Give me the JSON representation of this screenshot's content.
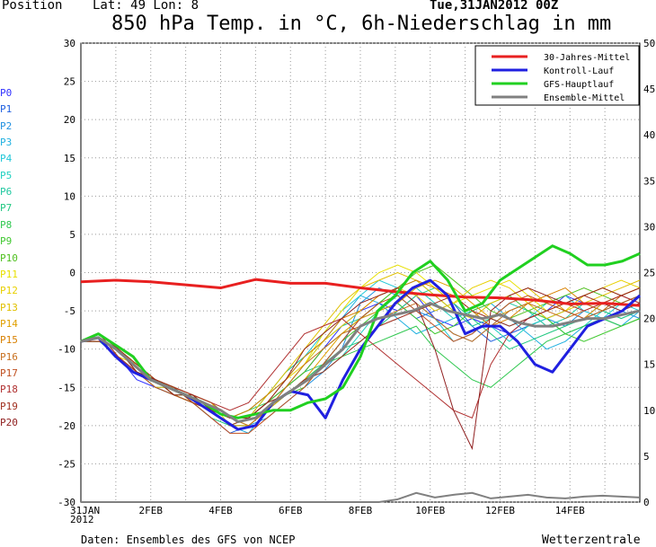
{
  "header": {
    "position_label": "Position",
    "latlon": "Lat: 49 Lon: 8",
    "datetime": "Tue,31JAN2012 00Z",
    "title": "850 hPa Temp. in °C, 6h-Niederschlag in mm"
  },
  "footer": {
    "source": "Daten: Ensembles des GFS von NCEP",
    "brand": "Wetterzentrale"
  },
  "members": [
    "P0",
    "P1",
    "P2",
    "P3",
    "P4",
    "P5",
    "P6",
    "P7",
    "P8",
    "P9",
    "P10",
    "P11",
    "P12",
    "P13",
    "P14",
    "P15",
    "P16",
    "P17",
    "P18",
    "P19",
    "P20"
  ],
  "member_colors": [
    "#3030ff",
    "#2060e0",
    "#2090e0",
    "#20b0e0",
    "#20c8d8",
    "#20d0c0",
    "#20c8a0",
    "#20c880",
    "#30c850",
    "#40c830",
    "#50c020",
    "#e8e000",
    "#e8d000",
    "#e0c000",
    "#e0a000",
    "#d88000",
    "#c87020",
    "#c05020",
    "#b03030",
    "#a03020",
    "#902020"
  ],
  "chart_data": {
    "type": "line",
    "title": "850 hPa Temp. in °C, 6h-Niederschlag in mm",
    "ylim_left": [
      -30,
      30
    ],
    "ylim_right": [
      0,
      50
    ],
    "y_ticks_left": [
      "30",
      "25",
      "20",
      "15",
      "10",
      "5",
      "0",
      "-5",
      "-10",
      "-15",
      "-20",
      "-25",
      "-30"
    ],
    "y_ticks_right": [
      "50",
      "45",
      "40",
      "35",
      "30",
      "25",
      "20",
      "15",
      "10",
      "5",
      "0"
    ],
    "x_ticks": [
      "31JAN\n2012",
      "2FEB",
      "4FEB",
      "6FEB",
      "8FEB",
      "10FEB",
      "12FEB",
      "14FEB"
    ],
    "x_range_days": 16,
    "grid": true,
    "legend": {
      "position": "top-right",
      "entries": [
        {
          "label": "30-Jahres-Mittel",
          "color": "#e82020"
        },
        {
          "label": "Kontroll-Lauf",
          "color": "#2020e0"
        },
        {
          "label": "GFS-Hauptlauf",
          "color": "#20d020"
        },
        {
          "label": "Ensemble-Mittel",
          "color": "#808080"
        }
      ]
    },
    "series": [
      {
        "name": "30-Jahres-Mittel",
        "color": "#e82020",
        "width": 3,
        "x": [
          0,
          1,
          2,
          3,
          4,
          5,
          6,
          7,
          8,
          9,
          10,
          11,
          12,
          13,
          14,
          15,
          16
        ],
        "y": [
          -1.2,
          -1.0,
          -1.2,
          -1.6,
          -2.0,
          -0.9,
          -1.4,
          -1.4,
          -2.0,
          -2.5,
          -2.9,
          -3.2,
          -3.3,
          -3.6,
          -4.1,
          -4.0,
          -4.3
        ]
      },
      {
        "name": "Kontroll-Lauf",
        "color": "#2020e0",
        "width": 3,
        "x": [
          0,
          0.5,
          1,
          1.5,
          2,
          2.5,
          3,
          3.5,
          4,
          4.5,
          5,
          5.5,
          6,
          6.5,
          7,
          7.5,
          8,
          8.5,
          9,
          9.5,
          10,
          10.5,
          11,
          11.5,
          12,
          12.5,
          13,
          13.5,
          14,
          14.5,
          15,
          15.5,
          16
        ],
        "y": [
          -9,
          -8.5,
          -11,
          -13,
          -14,
          -15,
          -16,
          -17.5,
          -19,
          -20.5,
          -20,
          -17,
          -15.5,
          -16,
          -19,
          -14,
          -10,
          -7,
          -4,
          -2,
          -1,
          -3,
          -8,
          -7,
          -7,
          -9,
          -12,
          -13,
          -10,
          -7,
          -6,
          -5,
          -3
        ]
      },
      {
        "name": "GFS-Hauptlauf",
        "color": "#20d020",
        "width": 3,
        "x": [
          0,
          0.5,
          1,
          1.5,
          2,
          2.5,
          3,
          3.5,
          4,
          4.5,
          5,
          5.5,
          6,
          6.5,
          7,
          7.5,
          8,
          8.5,
          9,
          9.5,
          10,
          10.5,
          11,
          11.5,
          12,
          12.5,
          13,
          13.5,
          14,
          14.5,
          15,
          15.5,
          16
        ],
        "y": [
          -9,
          -8,
          -9.5,
          -11,
          -14,
          -15,
          -16,
          -17,
          -18.5,
          -19,
          -18.5,
          -18,
          -18,
          -17,
          -16.5,
          -15,
          -11,
          -5,
          -3,
          0,
          1.5,
          -1,
          -5,
          -4,
          -1,
          0.5,
          2,
          3.5,
          2.5,
          1,
          1,
          1.5,
          2.5
        ]
      },
      {
        "name": "Ensemble-Mittel",
        "color": "#808080",
        "width": 3,
        "x": [
          0,
          0.5,
          1,
          1.5,
          2,
          2.5,
          3,
          3.5,
          4,
          4.5,
          5,
          5.5,
          6,
          6.5,
          7,
          7.5,
          8,
          8.5,
          9,
          9.5,
          10,
          10.5,
          11,
          11.5,
          12,
          12.5,
          13,
          13.5,
          14,
          14.5,
          15,
          15.5,
          16
        ],
        "y": [
          -9,
          -8.5,
          -10,
          -12,
          -14,
          -15,
          -16,
          -17,
          -18,
          -19.5,
          -19,
          -17,
          -15.5,
          -14,
          -12,
          -10,
          -7,
          -6,
          -5.5,
          -5,
          -4,
          -5,
          -5.5,
          -6,
          -5.5,
          -6.5,
          -7,
          -7,
          -6.5,
          -6,
          -6,
          -5.5,
          -5
        ]
      }
    ],
    "members_temp": [
      [
        -9,
        -9,
        -11,
        -14,
        -15,
        -16,
        -17,
        -18,
        -20,
        -19,
        -17,
        -15,
        -13,
        -10,
        -7,
        -5,
        -4,
        -5,
        -3,
        -6,
        -7,
        -6,
        -7,
        -8,
        -6,
        -5,
        -3,
        -4,
        -5,
        -3,
        -4
      ],
      [
        -9,
        -9,
        -10,
        -13,
        -14,
        -16,
        -17,
        -19,
        -21,
        -20,
        -18,
        -16,
        -14,
        -12,
        -9,
        -6,
        -5,
        -4,
        -6,
        -5,
        -4,
        -7,
        -9,
        -8,
        -7,
        -6,
        -5,
        -6,
        -4,
        -5,
        -4
      ],
      [
        -9,
        -8,
        -11,
        -13,
        -15,
        -15,
        -17,
        -18,
        -19,
        -20,
        -19,
        -17,
        -15,
        -13,
        -10,
        -4,
        -2,
        -3,
        -5,
        -6,
        -8,
        -9,
        -7,
        -5,
        -4,
        -6,
        -7,
        -5,
        -6,
        -5,
        -6
      ],
      [
        -9,
        -8,
        -10,
        -12,
        -14,
        -15,
        -16,
        -18,
        -20,
        -21,
        -18,
        -15,
        -12,
        -9,
        -6,
        -3,
        -4,
        -6,
        -8,
        -7,
        -6,
        -5,
        -4,
        -6,
        -8,
        -10,
        -9,
        -7,
        -6,
        -7,
        -5
      ],
      [
        -9,
        -9,
        -11,
        -13,
        -14,
        -16,
        -16,
        -17,
        -19,
        -19,
        -16,
        -14,
        -11,
        -8,
        -5,
        -3,
        -1,
        -2,
        -4,
        -6,
        -9,
        -8,
        -6,
        -7,
        -6,
        -4,
        -3,
        -5,
        -6,
        -4,
        -5
      ],
      [
        -9,
        -8,
        -10,
        -12,
        -14,
        -15,
        -17,
        -18,
        -20,
        -20,
        -18,
        -16,
        -14,
        -13,
        -11,
        -8,
        -5,
        -3,
        -2,
        -4,
        -6,
        -5,
        -7,
        -9,
        -7,
        -6,
        -8,
        -7,
        -5,
        -6,
        -5
      ],
      [
        -9,
        -8,
        -10,
        -13,
        -14,
        -15,
        -16,
        -17,
        -19,
        -18,
        -16,
        -13,
        -11,
        -9,
        -7,
        -6,
        -4,
        -2,
        -1,
        -3,
        -5,
        -7,
        -6,
        -4,
        -5,
        -7,
        -6,
        -4,
        -5,
        -4,
        -3
      ],
      [
        -9,
        -9,
        -11,
        -13,
        -15,
        -16,
        -17,
        -19,
        -20,
        -19,
        -17,
        -15,
        -13,
        -12,
        -10,
        -9,
        -7,
        -5,
        -3,
        -2,
        -4,
        -6,
        -8,
        -10,
        -9,
        -8,
        -7,
        -6,
        -5,
        -6,
        -5
      ],
      [
        -9,
        -8,
        -10,
        -12,
        -14,
        -15,
        -16,
        -18,
        -19,
        -18,
        -17,
        -16,
        -14,
        -12,
        -11,
        -10,
        -9,
        -8,
        -7,
        -10,
        -12,
        -14,
        -15,
        -13,
        -11,
        -9,
        -8,
        -7,
        -6,
        -7,
        -6
      ],
      [
        -9,
        -8,
        -11,
        -13,
        -14,
        -16,
        -17,
        -18,
        -20,
        -20,
        -18,
        -16,
        -15,
        -12,
        -9,
        -7,
        -5,
        -4,
        -6,
        -8,
        -7,
        -5,
        -4,
        -3,
        -5,
        -6,
        -8,
        -9,
        -8,
        -7,
        -6
      ],
      [
        -9,
        -9,
        -10,
        -12,
        -14,
        -15,
        -16,
        -17,
        -19,
        -19,
        -17,
        -15,
        -13,
        -10,
        -8,
        -6,
        -4,
        -2,
        0,
        1,
        -1,
        -3,
        -5,
        -6,
        -5,
        -4,
        -3,
        -2,
        -3,
        -4,
        -3
      ],
      [
        -9,
        -8,
        -10,
        -13,
        -14,
        -15,
        -17,
        -18,
        -19,
        -20,
        -18,
        -15,
        -12,
        -8,
        -5,
        -2,
        0,
        1,
        0,
        -2,
        -4,
        -3,
        -2,
        -1,
        -3,
        -5,
        -4,
        -3,
        -2,
        -3,
        -2
      ],
      [
        -9,
        -8,
        -11,
        -12,
        -14,
        -16,
        -16,
        -17,
        -20,
        -19,
        -17,
        -14,
        -12,
        -9,
        -7,
        -5,
        -3,
        -2,
        -3,
        -5,
        -4,
        -2,
        -1,
        -2,
        -4,
        -6,
        -5,
        -3,
        -2,
        -1,
        -2
      ],
      [
        -9,
        -9,
        -10,
        -13,
        -15,
        -15,
        -17,
        -18,
        -19,
        -19,
        -16,
        -13,
        -10,
        -7,
        -4,
        -2,
        -1,
        0,
        -1,
        -3,
        -5,
        -6,
        -4,
        -3,
        -2,
        -4,
        -5,
        -4,
        -3,
        -2,
        -1
      ],
      [
        -9,
        -8,
        -10,
        -12,
        -14,
        -15,
        -16,
        -18,
        -20,
        -20,
        -18,
        -16,
        -14,
        -11,
        -8,
        -6,
        -5,
        -4,
        -2,
        -1,
        -2,
        -4,
        -6,
        -5,
        -4,
        -3,
        -5,
        -6,
        -4,
        -3,
        -2
      ],
      [
        -9,
        -8,
        -11,
        -13,
        -14,
        -16,
        -17,
        -18,
        -19,
        -18,
        -16,
        -14,
        -11,
        -9,
        -6,
        -5,
        -3,
        -2,
        -1,
        -2,
        -3,
        -5,
        -7,
        -6,
        -4,
        -3,
        -2,
        -4,
        -5,
        -3,
        -2
      ],
      [
        -9,
        -9,
        -10,
        -12,
        -14,
        -15,
        -16,
        -17,
        -19,
        -20,
        -18,
        -15,
        -12,
        -10,
        -8,
        -7,
        -6,
        -5,
        -4,
        -6,
        -8,
        -9,
        -7,
        -5,
        -4,
        -5,
        -6,
        -5,
        -4,
        -3,
        -4
      ],
      [
        -9,
        -8,
        -10,
        -13,
        -15,
        -16,
        -17,
        -19,
        -21,
        -21,
        -19,
        -17,
        -15,
        -12,
        -9,
        -6,
        -4,
        -3,
        -5,
        -7,
        -9,
        -8,
        -6,
        -4,
        -3,
        -4,
        -5,
        -6,
        -5,
        -4,
        -3
      ],
      [
        -9,
        -8,
        -11,
        -13,
        -14,
        -15,
        -16,
        -17,
        -18,
        -17,
        -14,
        -11,
        -8,
        -7,
        -6,
        -8,
        -10,
        -12,
        -14,
        -16,
        -18,
        -19,
        -12,
        -8,
        -6,
        -5,
        -4,
        -5,
        -4,
        -3,
        -4
      ],
      [
        -9,
        -9,
        -10,
        -12,
        -14,
        -15,
        -17,
        -18,
        -20,
        -19,
        -17,
        -16,
        -14,
        -13,
        -11,
        -9,
        -7,
        -6,
        -5,
        -4,
        -3,
        -5,
        -6,
        -7,
        -6,
        -5,
        -4,
        -3,
        -4,
        -5,
        -4
      ],
      [
        -9,
        -8,
        -10,
        -13,
        -14,
        -16,
        -16,
        -18,
        -19,
        -19,
        -17,
        -14,
        -10,
        -8,
        -6,
        -4,
        -3,
        -2,
        -4,
        -10,
        -18,
        -23,
        -5,
        -3,
        -2,
        -3,
        -4,
        -3,
        -2,
        -3,
        -2
      ]
    ],
    "precip_ensemble_mean_mm": [
      0,
      0,
      0,
      0,
      0,
      0,
      0,
      0,
      0,
      0,
      0,
      0,
      0,
      0,
      0,
      0,
      0,
      0.3,
      1,
      0.5,
      0.8,
      1,
      0.4,
      0.6,
      0.8,
      0.5,
      0.4,
      0.6,
      0.7,
      0.6,
      0.5
    ]
  }
}
